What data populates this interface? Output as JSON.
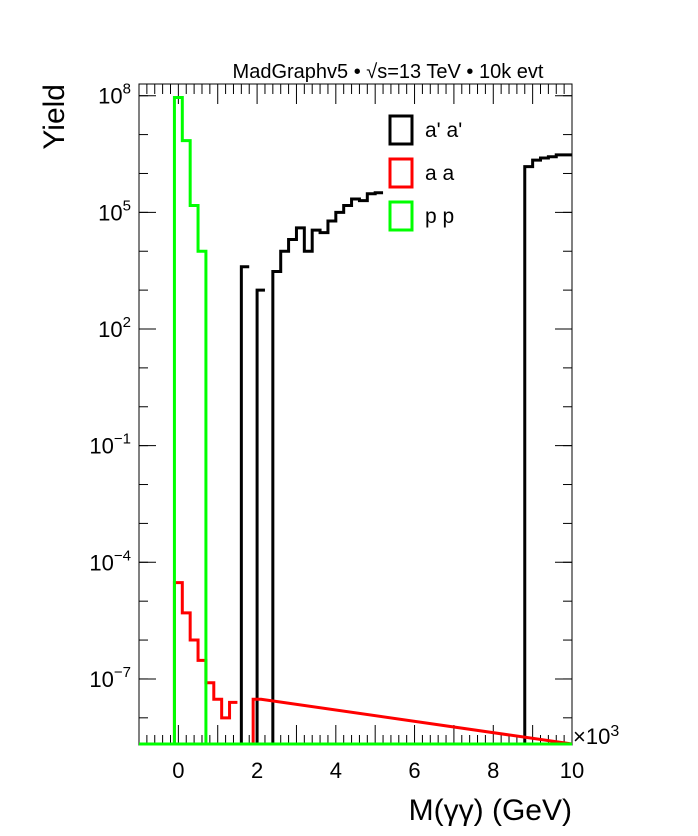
{
  "chart_data": {
    "type": "line",
    "title": "MadGraphv5 • √s=13 TeV • 10k evt",
    "xlabel": "M(γγ) (GeV)",
    "ylabel": "Yield",
    "x_multiplier": "×10^3",
    "xlim": [
      -1,
      10
    ],
    "ylim": [
      2e-09,
      200000000.0
    ],
    "yscale": "log",
    "bin_width": 0.2,
    "x_ticks": [
      0,
      2,
      4,
      6,
      8,
      10
    ],
    "x_tick_labels": [
      "0",
      "2",
      "4",
      "6",
      "8",
      "10"
    ],
    "y_ticks": [
      1e-07,
      0.0001,
      0.1,
      100.0,
      100000.0,
      100000000.0
    ],
    "y_tick_labels": [
      {
        "base": "10",
        "exp": "−7"
      },
      {
        "base": "10",
        "exp": "−4"
      },
      {
        "base": "10",
        "exp": "−1"
      },
      {
        "base": "10",
        "exp": "2"
      },
      {
        "base": "10",
        "exp": "5"
      },
      {
        "base": "10",
        "exp": "8"
      }
    ],
    "legend": {
      "position": "top-right"
    },
    "series": [
      {
        "name": "a' a'",
        "color": "#000000",
        "bins": [
          [
            1.6,
            1.8,
            4000.0
          ],
          [
            2.0,
            2.2,
            1000.0
          ],
          [
            2.4,
            2.6,
            3000.0
          ],
          [
            2.6,
            2.8,
            10000.0
          ],
          [
            2.8,
            3.0,
            20000.0
          ],
          [
            3.0,
            3.2,
            40000.0
          ],
          [
            3.2,
            3.4,
            10000.0
          ],
          [
            3.4,
            3.6,
            35000.0
          ],
          [
            3.6,
            3.8,
            30000.0
          ],
          [
            3.8,
            4.0,
            60000.0
          ],
          [
            4.0,
            4.2,
            100000.0
          ],
          [
            4.2,
            4.4,
            150000.0
          ],
          [
            4.4,
            4.6,
            220000.0
          ],
          [
            4.6,
            4.8,
            200000.0
          ],
          [
            4.8,
            5.0,
            300000.0
          ],
          [
            5.0,
            5.2,
            320000.0
          ],
          [
            8.8,
            9.0,
            1500000.0
          ],
          [
            9.0,
            9.2,
            2200000.0
          ],
          [
            9.2,
            9.4,
            2500000.0
          ],
          [
            9.4,
            9.6,
            2700000.0
          ],
          [
            9.6,
            9.8,
            3000000.0
          ],
          [
            9.8,
            10.0,
            3000000.0
          ]
        ]
      },
      {
        "name": "a a",
        "color": "#ff0000",
        "bins": [
          [
            -0.1,
            0.1,
            3e-05
          ],
          [
            0.1,
            0.3,
            5e-06
          ],
          [
            0.3,
            0.5,
            1e-06
          ],
          [
            0.5,
            0.7,
            3e-07
          ],
          [
            0.7,
            0.9,
            8e-08
          ],
          [
            0.9,
            1.1,
            3e-08
          ],
          [
            1.1,
            1.3,
            1e-08
          ],
          [
            1.3,
            1.5,
            2.5e-08
          ],
          [
            1.9,
            2.1,
            3e-08
          ]
        ]
      },
      {
        "name": "p p",
        "color": "#00ff00",
        "bins": [
          [
            -0.1,
            0.1,
            90000000.0
          ],
          [
            0.1,
            0.3,
            7000000.0
          ],
          [
            0.3,
            0.5,
            150000.0
          ],
          [
            0.5,
            0.7,
            10000.0
          ],
          [
            0.7,
            0.9,
            2e-09
          ]
        ]
      }
    ]
  }
}
